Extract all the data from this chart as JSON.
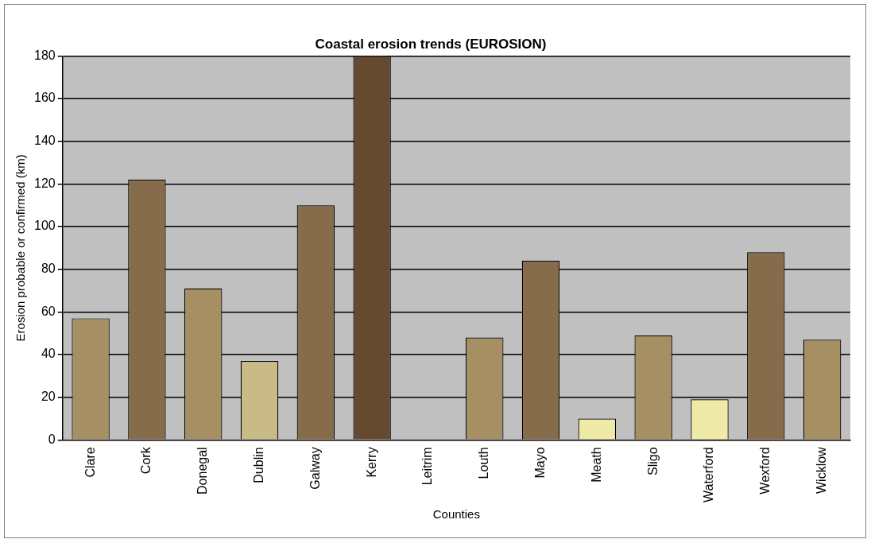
{
  "chart_data": {
    "type": "bar",
    "title": "Coastal erosion trends (EUROSION)",
    "xlabel": "Counties",
    "ylabel": "Erosion probable or confirmed (km)",
    "categories": [
      "Clare",
      "Cork",
      "Donegal",
      "Dublin",
      "Galway",
      "Kerry",
      "Leitrim",
      "Louth",
      "Mayo",
      "Meath",
      "Sligo",
      "Waterford",
      "Wexford",
      "Wicklow"
    ],
    "values": [
      57,
      122,
      71,
      37,
      110,
      180,
      0,
      48,
      84,
      10,
      49,
      19,
      88,
      47
    ],
    "colors": [
      "#a69063",
      "#866c4b",
      "#a69063",
      "#c8bb87",
      "#866c4b",
      "#654a30",
      "#a69063",
      "#a69063",
      "#866c4b",
      "#f0eaa8",
      "#a69063",
      "#f0eaa8",
      "#866c4b",
      "#a69063"
    ],
    "ylim": [
      0,
      180
    ],
    "yticks": [
      0,
      20,
      40,
      60,
      80,
      100,
      120,
      140,
      160,
      180
    ],
    "grid": "y",
    "legend": false
  }
}
